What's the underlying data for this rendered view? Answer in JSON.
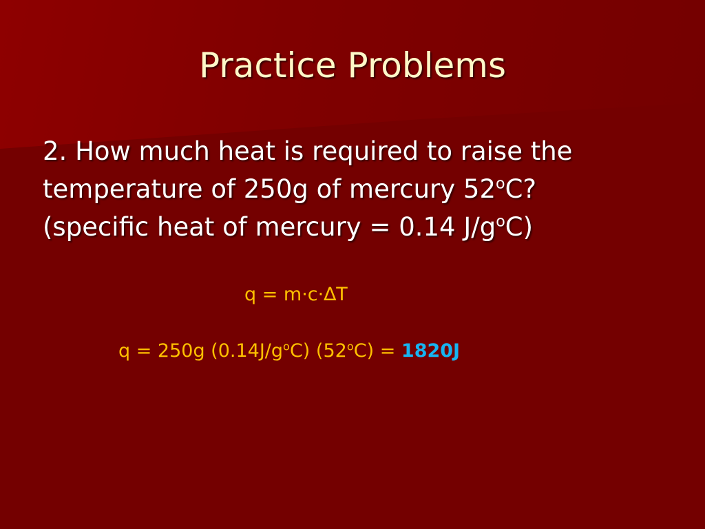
{
  "slide": {
    "title": "Practice Problems",
    "question_line1": "2. How much heat is required to raise the",
    "question_line2_a": "temperature of 250g of mercury 52",
    "question_line2_sup": "o",
    "question_line2_b": "C?",
    "question_line3_a": "(specific heat of mercury = 0.14 J/g",
    "question_line3_sup": "o",
    "question_line3_b": "C)",
    "formula": "q = m·c·∆T",
    "solution_a": "q = 250g (0.14J/g",
    "solution_sup1": "o",
    "solution_b": "C) (52",
    "solution_sup2": "o",
    "solution_c": "C) = ",
    "answer": "1820J"
  },
  "colors": {
    "background": "#740000",
    "title": "#fff8c8",
    "equation": "#ffc000",
    "answer": "#17b4f0"
  }
}
